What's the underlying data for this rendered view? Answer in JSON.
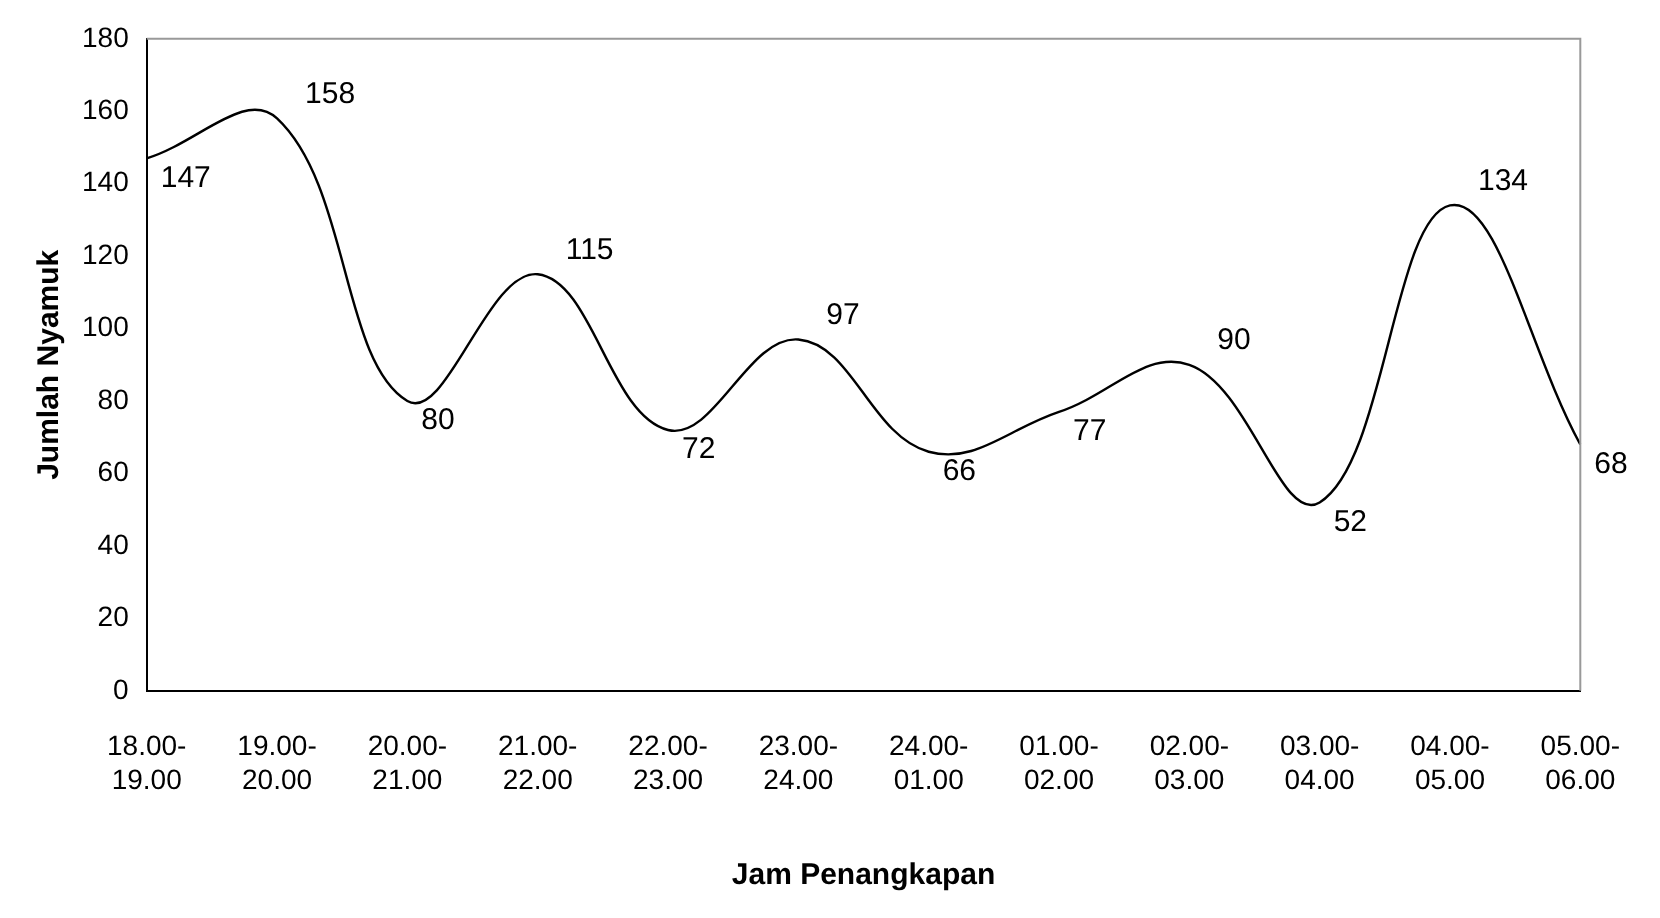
{
  "chart_data": {
    "type": "line",
    "xlabel": "Jam Penangkapan",
    "ylabel": "Jumlah Nyamuk",
    "categories": [
      "18.00-19.00",
      "19.00-20.00",
      "20.00-21.00",
      "21.00-22.00",
      "22.00-23.00",
      "23.00-24.00",
      "24.00-01.00",
      "01.00-02.00",
      "02.00-03.00",
      "03.00-04.00",
      "04.00-05.00",
      "05.00-06.00"
    ],
    "series": [
      {
        "color": "#000000",
        "values": [
          147,
          158,
          80,
          115,
          72,
          97,
          66,
          77,
          90,
          52,
          134,
          68
        ]
      }
    ],
    "ylim": [
      0,
      180
    ],
    "yticks": [
      0,
      20,
      40,
      60,
      80,
      100,
      120,
      140,
      160,
      180
    ],
    "grid": false,
    "legend": false,
    "marker": "none",
    "line_style": "solid",
    "data_labels": true
  }
}
